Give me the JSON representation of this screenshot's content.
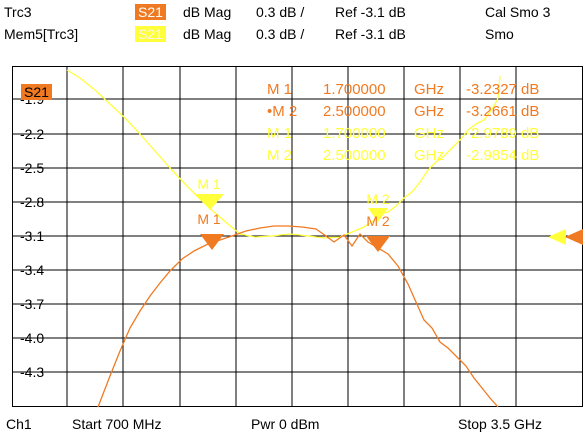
{
  "header": {
    "rows": [
      {
        "trace": "Trc3",
        "tag": "S21",
        "format": "dB Mag",
        "scale": "0.3 dB /",
        "ref": "Ref -3.1 dB",
        "status": "Cal Smo 3"
      },
      {
        "trace": "Mem5[Trc3]",
        "tag": "S21",
        "format": "dB Mag",
        "scale": "0.3 dB /",
        "ref": "Ref -3.1 dB",
        "status": "Smo"
      }
    ]
  },
  "plot": {
    "trace_badge": "S21",
    "y_ticks": [
      "-1.9",
      "-2.2",
      "-2.5",
      "-2.8",
      "-3.1",
      "-3.4",
      "-3.7",
      "-4.0",
      "-4.3"
    ],
    "markers_table": [
      {
        "label": "M 1",
        "freq": "1.700000",
        "unit": "GHz",
        "value": "-3.2327 dB",
        "color": "#f07a22"
      },
      {
        "label": "•M 2",
        "freq": "2.500000",
        "unit": "GHz",
        "value": "-3.2661 dB",
        "color": "#f07a22"
      },
      {
        "label": "M 1",
        "freq": "1.700000",
        "unit": "GHz",
        "value": "-2.9789 dB",
        "color": "#ffff3a"
      },
      {
        "label": "M 2",
        "freq": "2.500000",
        "unit": "GHz",
        "value": "-2.9854 dB",
        "color": "#ffff3a"
      }
    ],
    "marker_labels": {
      "m1_top": "M 1",
      "m1_bottom": "M 1",
      "m2_top": "M 2",
      "m2_bottom": "M 2"
    },
    "colors": {
      "grid": "#000000",
      "trace_orange": "#f07a22",
      "trace_yellow": "#ffff3a"
    }
  },
  "footer": {
    "channel": "Ch1",
    "start": "Start  700 MHz",
    "power": "Pwr  0 dBm",
    "stop": "Stop  3.5 GHz"
  }
}
